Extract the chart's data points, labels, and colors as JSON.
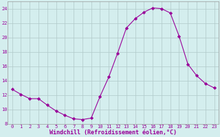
{
  "x": [
    0,
    1,
    2,
    3,
    4,
    5,
    6,
    7,
    8,
    9,
    10,
    11,
    12,
    13,
    14,
    15,
    16,
    17,
    18,
    19,
    20,
    21,
    22,
    23
  ],
  "y": [
    12.8,
    12.1,
    11.5,
    11.5,
    10.6,
    9.8,
    9.2,
    8.7,
    8.6,
    8.8,
    11.8,
    14.5,
    17.8,
    21.3,
    22.6,
    23.5,
    24.1,
    24.0,
    23.4,
    20.2,
    16.3,
    14.7,
    13.6,
    13.0
  ],
  "line_color": "#990099",
  "marker": "D",
  "marker_size": 2.2,
  "bg_color": "#d4eeee",
  "grid_color": "#b0c8c8",
  "xlabel": "Windchill (Refroidissement éolien,°C)",
  "xlabel_color": "#990099",
  "tick_color": "#990099",
  "label_color": "#990099",
  "ylim": [
    8,
    25
  ],
  "xlim": [
    -0.5,
    23.5
  ],
  "yticks": [
    8,
    10,
    12,
    14,
    16,
    18,
    20,
    22,
    24
  ],
  "xticks": [
    0,
    1,
    2,
    3,
    4,
    5,
    6,
    7,
    8,
    9,
    10,
    11,
    12,
    13,
    14,
    15,
    16,
    17,
    18,
    19,
    20,
    21,
    22,
    23
  ],
  "tick_fontsize": 5.0,
  "xlabel_fontsize": 6.0
}
